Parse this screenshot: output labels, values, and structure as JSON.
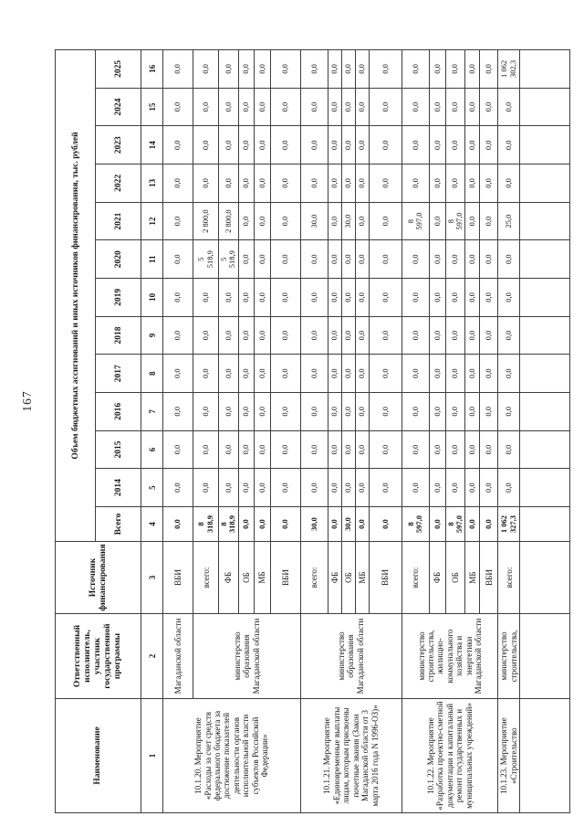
{
  "page": {
    "number": "167"
  },
  "table": {
    "grand_header": "Объем бюджетных ассигнований и иных источников финансирования, тыс. рублей",
    "column_headers": {
      "name": "Наименование",
      "executor": "Ответственный исполнитель, участник государственной программы",
      "source": "Источник финансирования",
      "total": "Всего",
      "years": [
        "2014",
        "2015",
        "2016",
        "2017",
        "2018",
        "2019",
        "2020",
        "2021",
        "2022",
        "2023",
        "2024",
        "2025"
      ]
    },
    "column_numbers": [
      "1",
      "2",
      "3",
      "4",
      "5",
      "6",
      "7",
      "8",
      "9",
      "10",
      "11",
      "12",
      "13",
      "14",
      "15",
      "16"
    ],
    "rows": [
      {
        "name": "10.1.20. Мероприятие «Расходы за счет средств федерального бюджета за достижение показателей деятельности органов исполнительной власти субъектов Российской Федерации»",
        "name_span": 6,
        "executor": "Магаданской области",
        "executor_span": 1,
        "source": "ВБИ",
        "values": [
          "0,0",
          "0,0",
          "0,0",
          "0,0",
          "0,0",
          "0,0",
          "0,0",
          "0,0",
          "0,0",
          "0,0",
          "0,0",
          "0,0",
          "0,0"
        ]
      },
      {
        "name": null,
        "executor": "министерство образования Магаданской области",
        "executor_span": 5,
        "source": "всего:",
        "values": [
          "8\n318,9",
          "0,0",
          "0,0",
          "0,0",
          "0,0",
          "0,0",
          "0,0",
          "5\n518,9",
          "2 800,0",
          "0,0",
          "0,0",
          "0,0",
          "0,0"
        ]
      },
      {
        "name": null,
        "executor": null,
        "source": "ФБ",
        "values": [
          "8\n318,9",
          "0,0",
          "0,0",
          "0,0",
          "0,0",
          "0,0",
          "0,0",
          "5\n518,9",
          "2 800,0",
          "0,0",
          "0,0",
          "0,0",
          "0,0"
        ]
      },
      {
        "name": null,
        "executor": null,
        "source": "ОБ",
        "values": [
          "0,0",
          "0,0",
          "0,0",
          "0,0",
          "0,0",
          "0,0",
          "0,0",
          "0,0",
          "0,0",
          "0,0",
          "0,0",
          "0,0",
          "0,0"
        ]
      },
      {
        "name": null,
        "executor": null,
        "source": "МБ",
        "values": [
          "0,0",
          "0,0",
          "0,0",
          "0,0",
          "0,0",
          "0,0",
          "0,0",
          "0,0",
          "0,0",
          "0,0",
          "0,0",
          "0,0",
          "0,0"
        ]
      },
      {
        "name": null,
        "executor": null,
        "source": "ВБИ",
        "values": [
          "0,0",
          "0,0",
          "0,0",
          "0,0",
          "0,0",
          "0,0",
          "0,0",
          "0,0",
          "0,0",
          "0,0",
          "0,0",
          "0,0",
          "0,0"
        ]
      },
      {
        "name": "10.1.21. Мероприятие «Единовременные выплаты лицам, которым присвоены почетные звания (Закон Магаданской области от 3 марта 2016 года N 1996-ОЗ)»",
        "name_span": 5,
        "executor": "министерство образования Магаданской области",
        "executor_span": 5,
        "source": "всего:",
        "values": [
          "30,0",
          "0,0",
          "0,0",
          "0,0",
          "0,0",
          "0,0",
          "0,0",
          "0,0",
          "30,0",
          "0,0",
          "0,0",
          "0,0",
          "0,0"
        ]
      },
      {
        "name": null,
        "executor": null,
        "source": "ФБ",
        "values": [
          "0,0",
          "0,0",
          "0,0",
          "0,0",
          "0,0",
          "0,0",
          "0,0",
          "0,0",
          "0,0",
          "0,0",
          "0,0",
          "0,0",
          "0,0"
        ]
      },
      {
        "name": null,
        "executor": null,
        "source": "ОБ",
        "values": [
          "30,0",
          "0,0",
          "0,0",
          "0,0",
          "0,0",
          "0,0",
          "0,0",
          "0,0",
          "30,0",
          "0,0",
          "0,0",
          "0,0",
          "0,0"
        ]
      },
      {
        "name": null,
        "executor": null,
        "source": "МБ",
        "values": [
          "0,0",
          "0,0",
          "0,0",
          "0,0",
          "0,0",
          "0,0",
          "0,0",
          "0,0",
          "0,0",
          "0,0",
          "0,0",
          "0,0",
          "0,0"
        ]
      },
      {
        "name": null,
        "executor": null,
        "source": "ВБИ",
        "values": [
          "0,0",
          "0,0",
          "0,0",
          "0,0",
          "0,0",
          "0,0",
          "0,0",
          "0,0",
          "0,0",
          "0,0",
          "0,0",
          "0,0",
          "0,0"
        ]
      },
      {
        "name": "10.1.22. Мероприятие «Разработка проектно-сметной документации и капитальный ремонт государственных и муниципальных учреждений»",
        "name_span": 5,
        "executor": "министерство строительства, жилищно-коммунального хозяйства и энергетики Магаданской области",
        "executor_span": 5,
        "source": "всего:",
        "values": [
          "8\n597,0",
          "0,0",
          "0,0",
          "0,0",
          "0,0",
          "0,0",
          "0,0",
          "0,0",
          "8\n597,0",
          "0,0",
          "0,0",
          "0,0",
          "0,0"
        ]
      },
      {
        "name": null,
        "executor": null,
        "source": "ФБ",
        "values": [
          "0,0",
          "0,0",
          "0,0",
          "0,0",
          "0,0",
          "0,0",
          "0,0",
          "0,0",
          "0,0",
          "0,0",
          "0,0",
          "0,0",
          "0,0"
        ]
      },
      {
        "name": null,
        "executor": null,
        "source": "ОБ",
        "values": [
          "8\n597,0",
          "0,0",
          "0,0",
          "0,0",
          "0,0",
          "0,0",
          "0,0",
          "0,0",
          "8\n597,0",
          "0,0",
          "0,0",
          "0,0",
          "0,0"
        ]
      },
      {
        "name": null,
        "executor": null,
        "source": "МБ",
        "values": [
          "0,0",
          "0,0",
          "0,0",
          "0,0",
          "0,0",
          "0,0",
          "0,0",
          "0,0",
          "0,0",
          "0,0",
          "0,0",
          "0,0",
          "0,0"
        ]
      },
      {
        "name": null,
        "executor": null,
        "source": "ВБИ",
        "values": [
          "0,0",
          "0,0",
          "0,0",
          "0,0",
          "0,0",
          "0,0",
          "0,0",
          "0,0",
          "0,0",
          "0,0",
          "0,0",
          "0,0",
          "0,0"
        ]
      },
      {
        "name": "10.1.23. Мероприятие «Строительство",
        "name_span": 1,
        "executor": "министерство строительства,",
        "executor_span": 1,
        "source": "всего:",
        "values": [
          "1 062\n327,3",
          "0,0",
          "0,0",
          "0,0",
          "0,0",
          "0,0",
          "0,0",
          "0,0",
          "25,0",
          "0,0",
          "0,0",
          "0,0",
          "1 062\n302,3"
        ]
      },
      {
        "name": "",
        "name_span": 1,
        "executor": "",
        "executor_span": 1,
        "source": "",
        "values": [
          "",
          "",
          "",
          "",
          "",
          "",
          "",
          "",
          "",
          "",
          "",
          "",
          ""
        ]
      }
    ]
  }
}
